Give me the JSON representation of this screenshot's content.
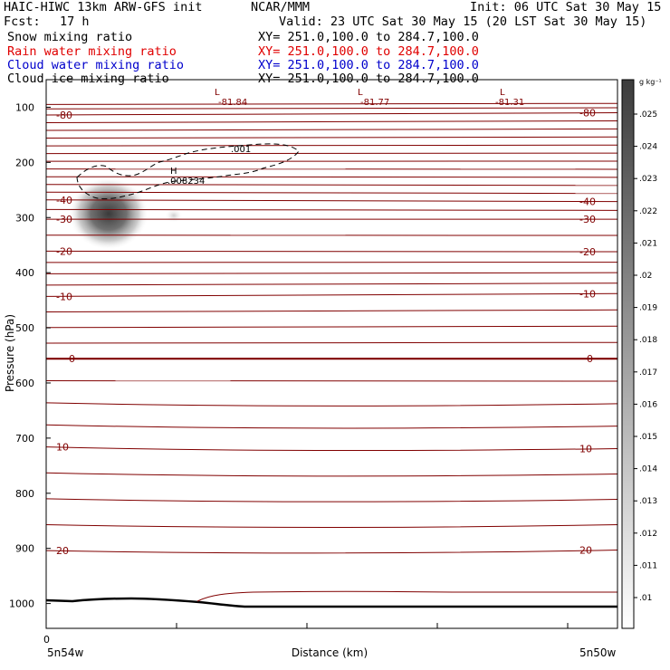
{
  "header": {
    "title": "HAIC-HIWC 13km ARW-GFS init",
    "org": "NCAR/MMM",
    "init": "Init: 06 UTC Sat 30 May 15",
    "fcst_label": "Fcst:",
    "fcst_value": "17 h",
    "valid": "Valid: 23 UTC Sat 30 May 15 (20 LST Sat 30 May 15)",
    "fields": [
      {
        "name": "Snow mixing ratio",
        "xy": "XY= 251.0,100.0 to 284.7,100.0",
        "color": "#000000"
      },
      {
        "name": "Rain water mixing ratio",
        "xy": "XY= 251.0,100.0 to 284.7,100.0",
        "color": "#e00000"
      },
      {
        "name": "Cloud water mixing ratio",
        "xy": "XY= 251.0,100.0 to 284.7,100.0",
        "color": "#0000cc"
      },
      {
        "name": "Cloud ice mixing ratio",
        "xy": "XY= 251.0,100.0 to 284.7,100.0",
        "color": "#000000"
      }
    ]
  },
  "chart_data": {
    "type": "heatmap",
    "ylabel": "Pressure (hPa)",
    "xlabel": "Distance (km)",
    "y_ticks": [
      100,
      200,
      300,
      400,
      500,
      600,
      700,
      800,
      900,
      1000
    ],
    "y_range": [
      50,
      1045
    ],
    "x_tick_zero": "0",
    "x_left_label": "5n54w",
    "x_right_label": "5n50w",
    "colorbar": {
      "unit": "g kg⁻¹",
      "ticks": [
        ".01",
        ".011",
        ".012",
        ".013",
        ".014",
        ".015",
        ".016",
        ".017",
        ".018",
        ".019",
        ".02",
        ".021",
        ".022",
        ".023",
        ".024",
        ".025"
      ]
    },
    "contours": {
      "color": "#800000",
      "left_labels": [
        {
          "text": "-80",
          "p": 114
        },
        {
          "text": "-40",
          "p": 268
        },
        {
          "text": "-30",
          "p": 303
        },
        {
          "text": "-20",
          "p": 361
        },
        {
          "text": "-10",
          "p": 443
        },
        {
          "text": "0",
          "p": 556
        },
        {
          "text": "10",
          "p": 716
        },
        {
          "text": "20",
          "p": 904
        }
      ],
      "right_labels": [
        {
          "text": "-80",
          "p": 110
        },
        {
          "text": "-40",
          "p": 271
        },
        {
          "text": "-30",
          "p": 303
        },
        {
          "text": "-20",
          "p": 362
        },
        {
          "text": "-10",
          "p": 438
        },
        {
          "text": "0",
          "p": 556
        },
        {
          "text": "10",
          "p": 719
        },
        {
          "text": "20",
          "p": 903
        }
      ],
      "minima": [
        {
          "mark": "L",
          "value": "-81.84"
        },
        {
          "mark": "L",
          "value": "-81.77"
        },
        {
          "mark": "L",
          "value": "-81.31"
        }
      ]
    },
    "cloud_ice": {
      "contour_label": ".001",
      "max_mark": "H",
      "max_value": ".008234"
    }
  }
}
